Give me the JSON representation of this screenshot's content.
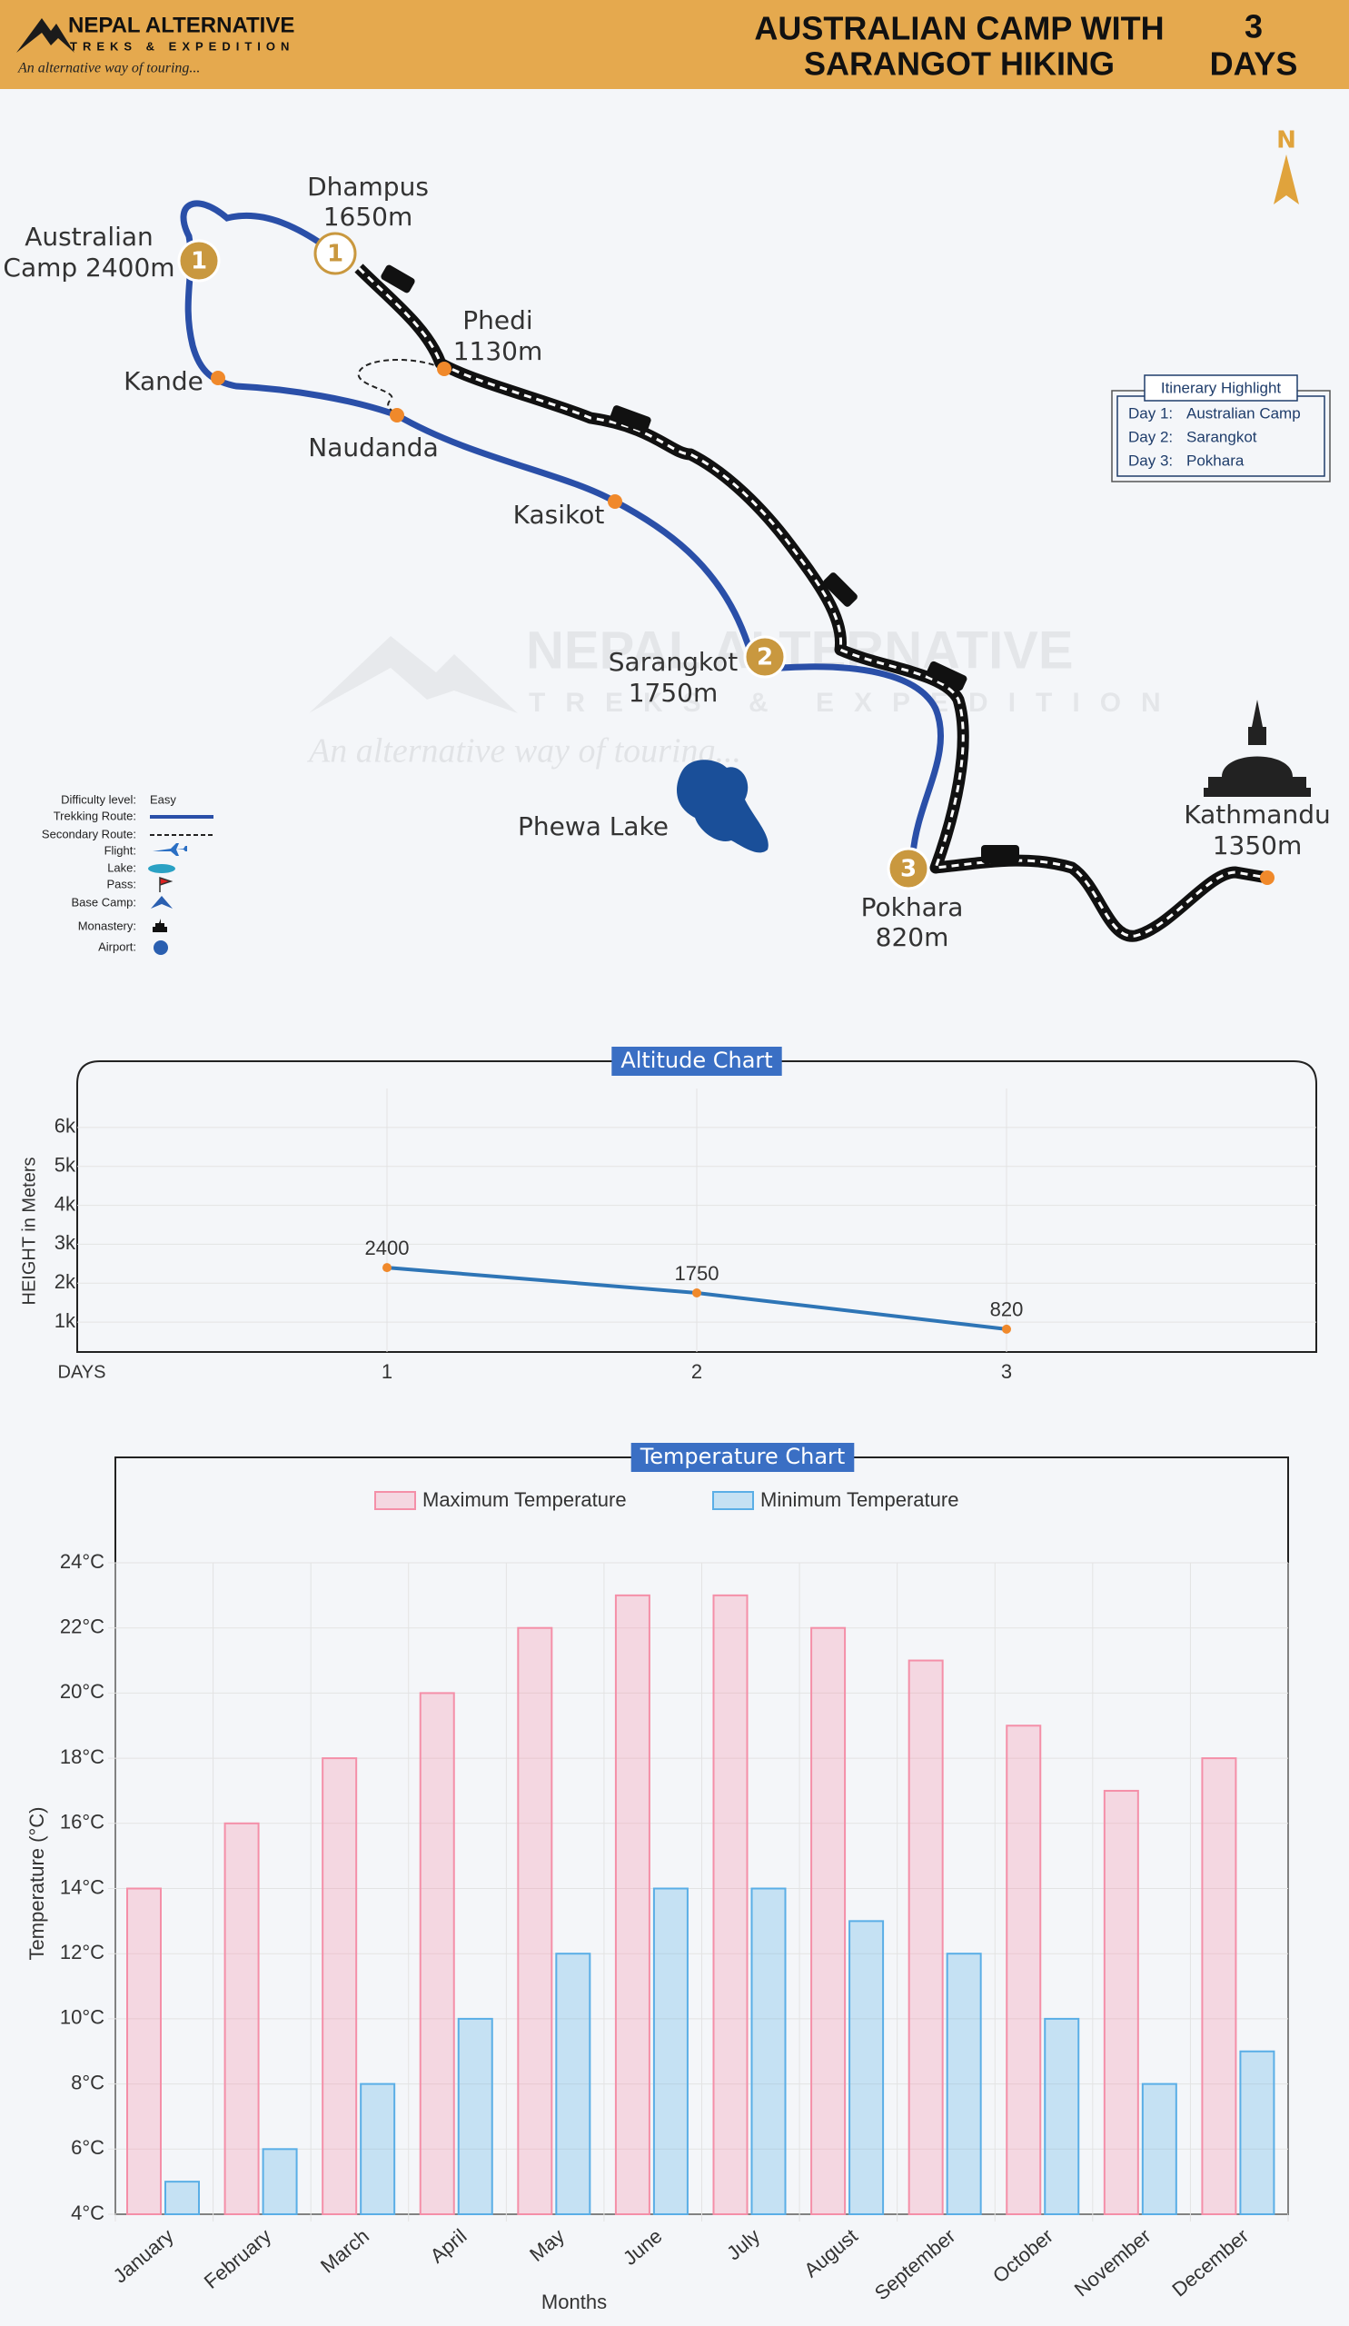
{
  "header": {
    "brand": "NEPAL ALTERNATIVE",
    "brand_sub": "TREKS & EXPEDITION",
    "tagline": "An alternative way of touring...",
    "title": [
      "AUSTRALIAN CAMP WITH",
      "SARANGOT HIKING"
    ],
    "days_count": "3",
    "days_label": "DAYS"
  },
  "map": {
    "north": "N",
    "places": [
      {
        "lines": [
          "Australian",
          "Camp 2400m"
        ]
      },
      {
        "lines": [
          "Dhampus",
          "1650m"
        ]
      },
      {
        "lines": [
          "Phedi",
          "1130m"
        ]
      },
      {
        "lines": [
          "Kande"
        ]
      },
      {
        "lines": [
          "Naudanda"
        ]
      },
      {
        "lines": [
          "Kasikot"
        ]
      },
      {
        "lines": [
          "Sarangkot",
          "1750m"
        ]
      },
      {
        "lines": [
          "Phewa Lake"
        ]
      },
      {
        "lines": [
          "Pokhara",
          "820m"
        ]
      },
      {
        "lines": [
          "Kathmandu",
          "1350m"
        ]
      }
    ],
    "markers": [
      "1",
      "1",
      "2",
      "3"
    ],
    "watermark": [
      "NEPAL ALTERNATIVE",
      "TREKS & EXPEDITION",
      "An alternative way of touring..."
    ]
  },
  "itinerary": {
    "title": "Itinerary Highlight",
    "days": [
      {
        "day": "Day 1:",
        "place": "Australian Camp"
      },
      {
        "day": "Day 2:",
        "place": "Sarangkot"
      },
      {
        "day": "Day 3:",
        "place": "Pokhara"
      }
    ]
  },
  "legend": [
    {
      "label": "Difficulty level:",
      "value": "Easy"
    },
    {
      "label": "Trekking Route:"
    },
    {
      "label": "Secondary Route:"
    },
    {
      "label": "Flight:"
    },
    {
      "label": "Lake:"
    },
    {
      "label": "Pass:"
    },
    {
      "label": "Base Camp:"
    },
    {
      "label": "Monastery:"
    },
    {
      "label": "Airport:"
    }
  ],
  "chart_data": [
    {
      "type": "line",
      "title": "Altitude Chart",
      "x_label": "DAYS",
      "y_label": "HEIGHT in Meters",
      "x": [
        1,
        2,
        3
      ],
      "xlim": [
        0,
        4
      ],
      "xticks": [
        1,
        2,
        3
      ],
      "ylim": [
        0,
        7000
      ],
      "yticks": [
        {
          "value": 1000,
          "label": "1k"
        },
        {
          "value": 2000,
          "label": "2k"
        },
        {
          "value": 3000,
          "label": "3k"
        },
        {
          "value": 4000,
          "label": "4k"
        },
        {
          "value": 5000,
          "label": "5k"
        },
        {
          "value": 6000,
          "label": "6k"
        }
      ],
      "grid": true,
      "series": [
        {
          "color": "#2e75b6",
          "marker_color": "#f0892b",
          "values": [
            2400,
            1750,
            820
          ]
        }
      ]
    },
    {
      "type": "bar",
      "title": "Temperature Chart",
      "x_label": "Months",
      "y_label": "Temperature (°C)",
      "categories": [
        "January",
        "February",
        "March",
        "April",
        "May",
        "June",
        "July",
        "August",
        "September",
        "October",
        "November",
        "December"
      ],
      "ylim": [
        4,
        24
      ],
      "yticks": [
        {
          "value": 4,
          "label": "4°C"
        },
        {
          "value": 6,
          "label": "6°C"
        },
        {
          "value": 8,
          "label": "8°C"
        },
        {
          "value": 10,
          "label": "10°C"
        },
        {
          "value": 12,
          "label": "12°C"
        },
        {
          "value": 14,
          "label": "14°C"
        },
        {
          "value": 16,
          "label": "16°C"
        },
        {
          "value": 18,
          "label": "18°C"
        },
        {
          "value": 20,
          "label": "20°C"
        },
        {
          "value": 22,
          "label": "22°C"
        },
        {
          "value": 24,
          "label": "24°C"
        }
      ],
      "grid": true,
      "legend": "top",
      "series": [
        {
          "name": "Maximum Temperature",
          "color": "#f48fa8",
          "values": [
            14,
            16,
            18,
            20,
            22,
            23,
            23,
            22,
            21,
            19,
            17,
            18
          ]
        },
        {
          "name": "Minimum Temperature",
          "color": "#5aaee6",
          "values": [
            5,
            6,
            8,
            10,
            12,
            14,
            14,
            13,
            12,
            10,
            8,
            9
          ]
        }
      ]
    }
  ]
}
